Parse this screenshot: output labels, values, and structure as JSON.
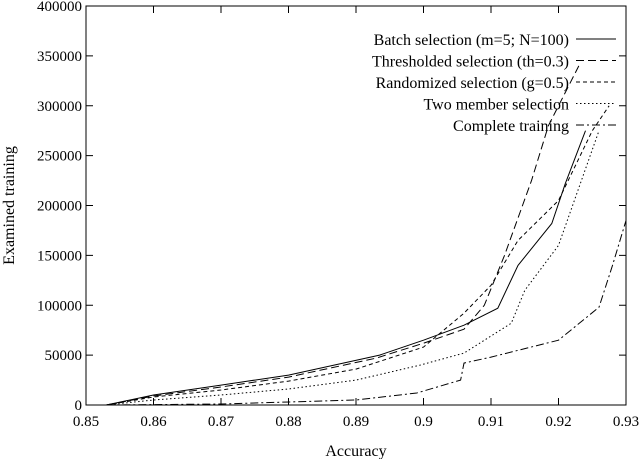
{
  "chart_data": {
    "type": "line",
    "title": "",
    "xlabel": "Accuracy",
    "ylabel": "Examined training",
    "xlim": [
      0.85,
      0.93
    ],
    "ylim": [
      0,
      400000
    ],
    "xticks": [
      0.85,
      0.86,
      0.87,
      0.88,
      0.89,
      0.9,
      0.91,
      0.92,
      0.93
    ],
    "xtick_labels": [
      "0.85",
      "0.86",
      "0.87",
      "0.88",
      "0.89",
      "0.9",
      "0.91",
      "0.92",
      "0.93"
    ],
    "yticks": [
      0,
      50000,
      100000,
      150000,
      200000,
      250000,
      300000,
      350000,
      400000
    ],
    "ytick_labels": [
      "0",
      "50000",
      "100000",
      "150000",
      "200000",
      "250000",
      "300000",
      "350000",
      "400000"
    ],
    "grid": false,
    "legend": "top-right",
    "series": [
      {
        "name": "Batch selection (m=5; N=100)",
        "dash": "solid",
        "points": [
          [
            0.853,
            0
          ],
          [
            0.86,
            10000
          ],
          [
            0.87,
            20000
          ],
          [
            0.88,
            30000
          ],
          [
            0.8935,
            50000
          ],
          [
            0.9,
            65000
          ],
          [
            0.906,
            80000
          ],
          [
            0.911,
            97000
          ],
          [
            0.914,
            140000
          ],
          [
            0.919,
            182000
          ],
          [
            0.921,
            222000
          ],
          [
            0.924,
            275000
          ]
        ]
      },
      {
        "name": "Thresholded selection (th=0.3)",
        "dash": "dashed",
        "points": [
          [
            0.853,
            0
          ],
          [
            0.86,
            9000
          ],
          [
            0.87,
            18000
          ],
          [
            0.88,
            28000
          ],
          [
            0.893,
            47000
          ],
          [
            0.9,
            62000
          ],
          [
            0.906,
            76000
          ],
          [
            0.909,
            100000
          ],
          [
            0.912,
            150000
          ],
          [
            0.916,
            225000
          ],
          [
            0.9185,
            280000
          ],
          [
            0.923,
            340000
          ]
        ]
      },
      {
        "name": "Randomized selection (g=0.5)",
        "dash": "short-dashed",
        "points": [
          [
            0.853,
            0
          ],
          [
            0.86,
            8000
          ],
          [
            0.87,
            15000
          ],
          [
            0.88,
            24000
          ],
          [
            0.89,
            36000
          ],
          [
            0.9,
            58000
          ],
          [
            0.906,
            92000
          ],
          [
            0.91,
            120000
          ],
          [
            0.914,
            165000
          ],
          [
            0.92,
            205000
          ],
          [
            0.925,
            275000
          ],
          [
            0.9275,
            300000
          ]
        ]
      },
      {
        "name": "Two member selection",
        "dash": "dotted",
        "points": [
          [
            0.853,
            0
          ],
          [
            0.86,
            5000
          ],
          [
            0.87,
            10000
          ],
          [
            0.88,
            16000
          ],
          [
            0.89,
            25000
          ],
          [
            0.8995,
            40000
          ],
          [
            0.906,
            52000
          ],
          [
            0.913,
            82000
          ],
          [
            0.915,
            115000
          ],
          [
            0.92,
            160000
          ],
          [
            0.926,
            275000
          ]
        ]
      },
      {
        "name": "Complete training",
        "dash": "dash-dot",
        "points": [
          [
            0.853,
            0
          ],
          [
            0.87,
            1000
          ],
          [
            0.89,
            5000
          ],
          [
            0.899,
            12000
          ],
          [
            0.9055,
            25000
          ],
          [
            0.906,
            42000
          ],
          [
            0.91,
            48000
          ],
          [
            0.92,
            65000
          ],
          [
            0.926,
            98000
          ],
          [
            0.928,
            140000
          ],
          [
            0.93,
            185000
          ]
        ]
      }
    ]
  }
}
